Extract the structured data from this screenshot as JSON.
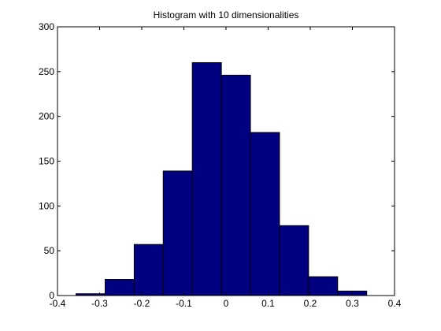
{
  "chart_data": {
    "type": "bar",
    "title": "Histogram with 10 dimensionalities",
    "xlabel": "",
    "ylabel": "",
    "xlim": [
      -0.4,
      0.4
    ],
    "ylim": [
      0,
      300
    ],
    "xticks": [
      -0.4,
      -0.3,
      -0.2,
      -0.1,
      0,
      0.1,
      0.2,
      0.3,
      0.4
    ],
    "xtick_labels": [
      "-0.4",
      "-0.3",
      "-0.2",
      "-0.1",
      "0",
      "0.1",
      "0.2",
      "0.3",
      "0.4"
    ],
    "yticks": [
      0,
      50,
      100,
      150,
      200,
      250,
      300
    ],
    "ytick_labels": [
      "0",
      "50",
      "100",
      "150",
      "200",
      "250",
      "300"
    ],
    "bin_edges": [
      -0.356,
      -0.287,
      -0.218,
      -0.149,
      -0.08,
      -0.011,
      0.058,
      0.127,
      0.196,
      0.265,
      0.334
    ],
    "values": [
      2,
      18,
      57,
      139,
      260,
      246,
      182,
      78,
      21,
      5
    ],
    "bar_color": "#000080",
    "edge_color": "#000000",
    "grid": false,
    "legend": "none"
  }
}
